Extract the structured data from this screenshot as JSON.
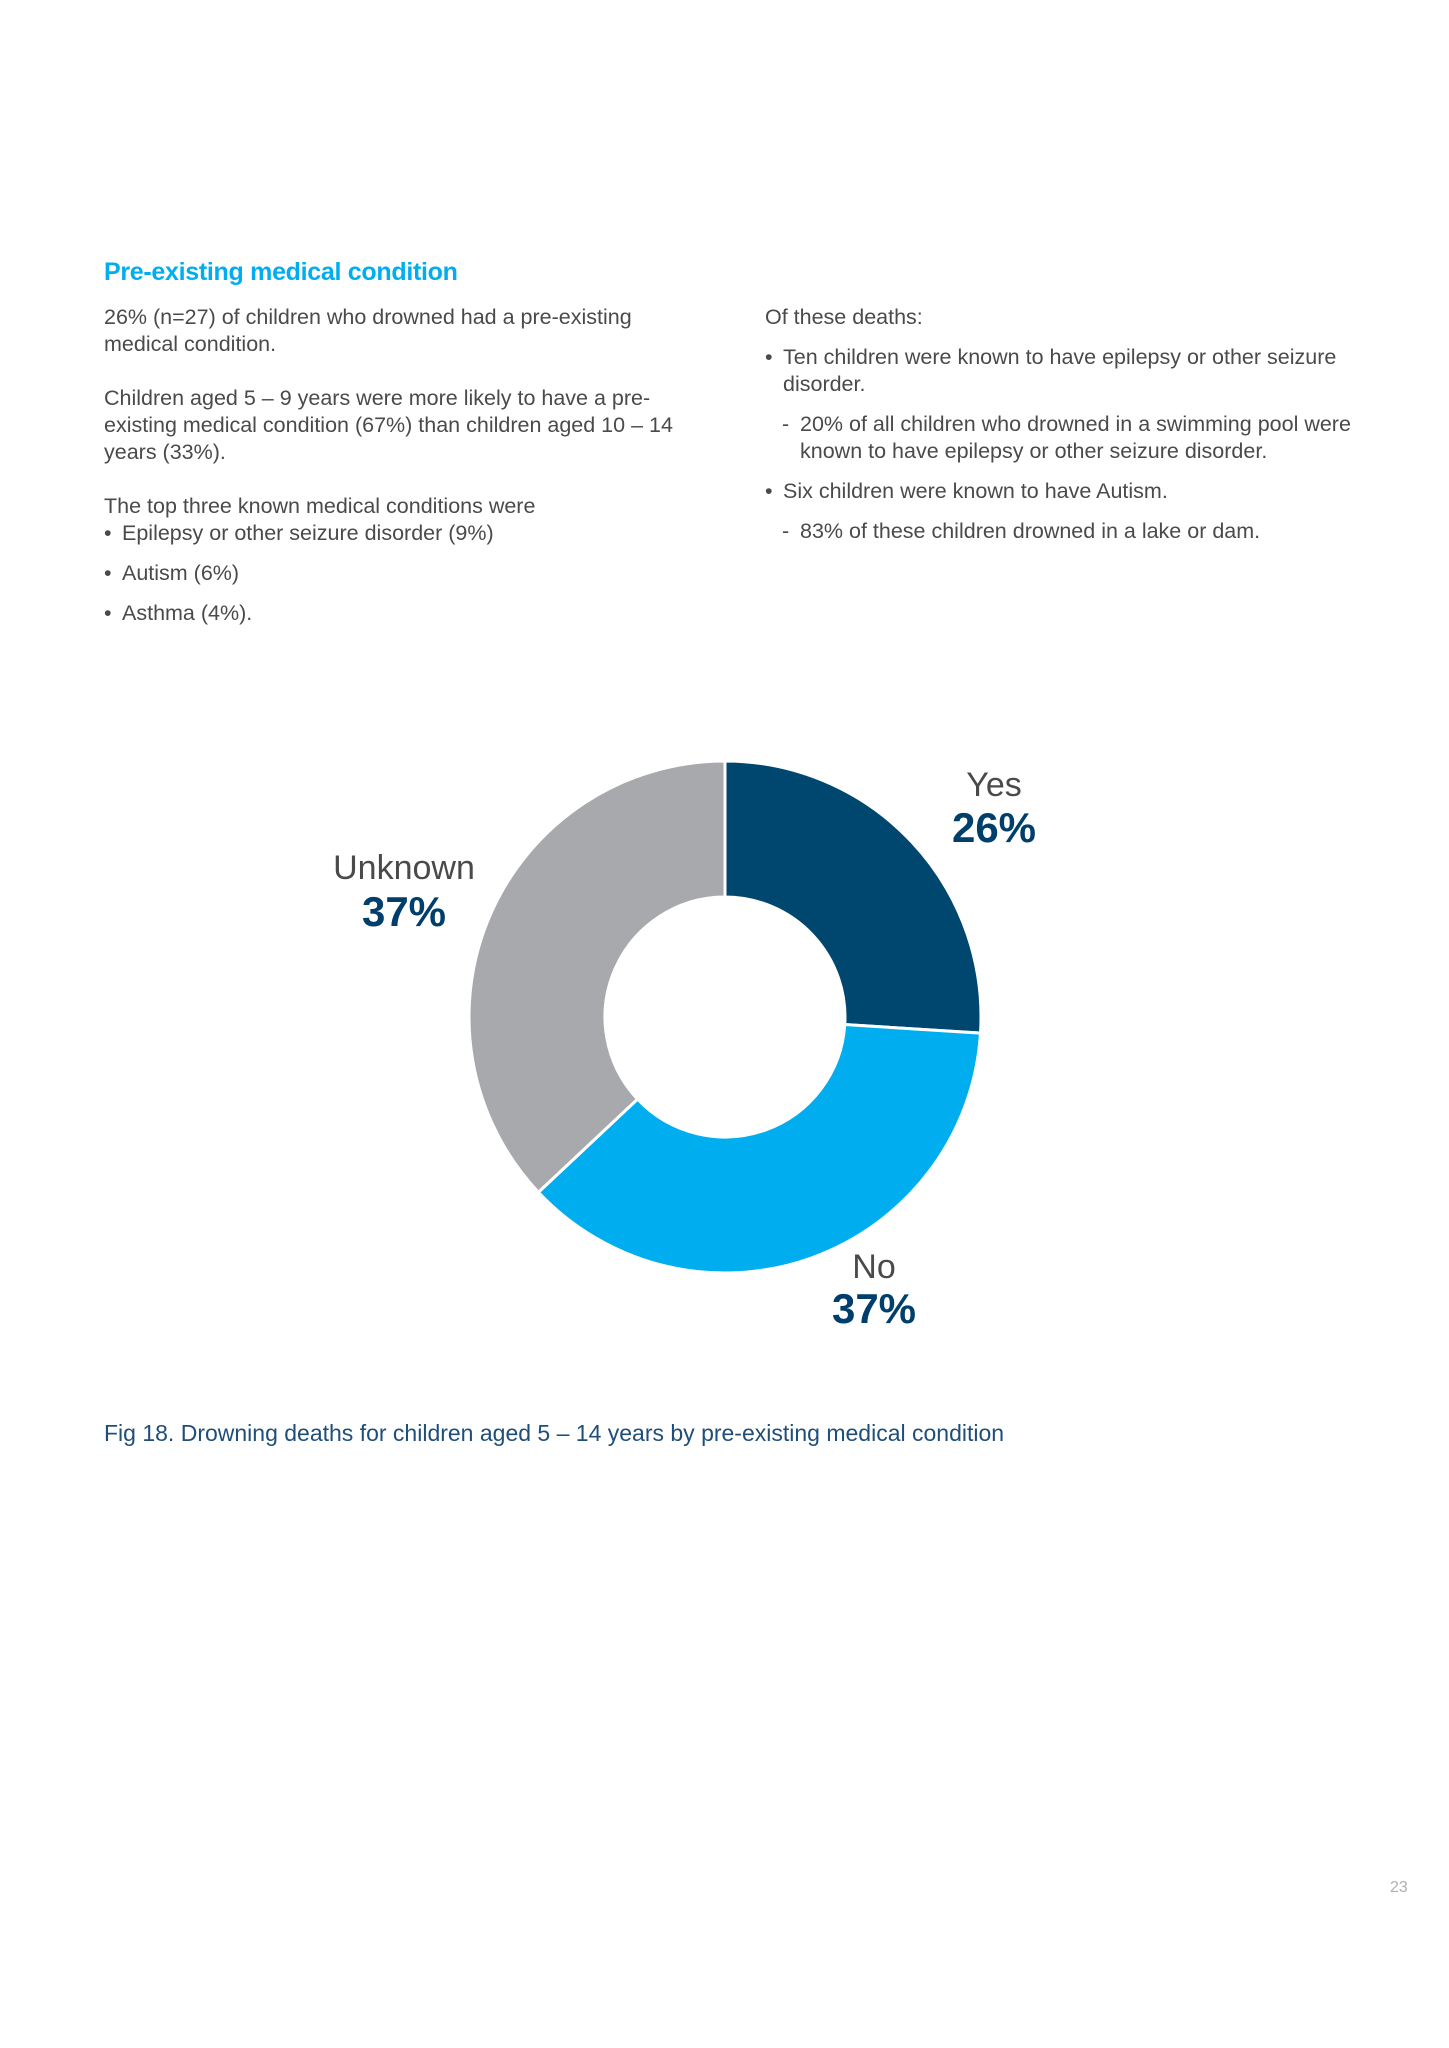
{
  "section": {
    "heading": "Pre-existing medical condition"
  },
  "left_column": {
    "para1": "26% (n=27) of children who drowned had a pre-existing medical condition.",
    "para2": "Children aged 5 – 9 years were more likely to have a pre-existing medical condition (67%) than children aged 10 – 14 years (33%).",
    "intro": "The top three known medical conditions were",
    "bullets": [
      "Epilepsy or other seizure disorder (9%)",
      "Autism (6%)",
      "Asthma (4%)."
    ]
  },
  "right_column": {
    "intro": "Of these deaths:",
    "bullet1": "Ten children were known to have epilepsy or other seizure disorder.",
    "sub1": "20% of all children who drowned in a swimming pool were known to have epilepsy or other seizure disorder.",
    "bullet2": "Six children were known to have Autism.",
    "sub2": "83% of these children drowned in a lake or dam."
  },
  "chart_data": {
    "type": "pie",
    "subtype": "donut",
    "slices": [
      {
        "label": "Yes",
        "value": 26,
        "display": "26%",
        "color": "#00476f"
      },
      {
        "label": "No",
        "value": 37,
        "display": "37%",
        "color": "#00aeef"
      },
      {
        "label": "Unknown",
        "value": 37,
        "display": "37%",
        "color": "#a7a9ac"
      }
    ],
    "label_color": "#4a4a4a",
    "value_color": "#003e6b"
  },
  "caption": "Fig 18. Drowning deaths for children aged 5 – 14 years by pre-existing medical condition",
  "page_number": "23"
}
